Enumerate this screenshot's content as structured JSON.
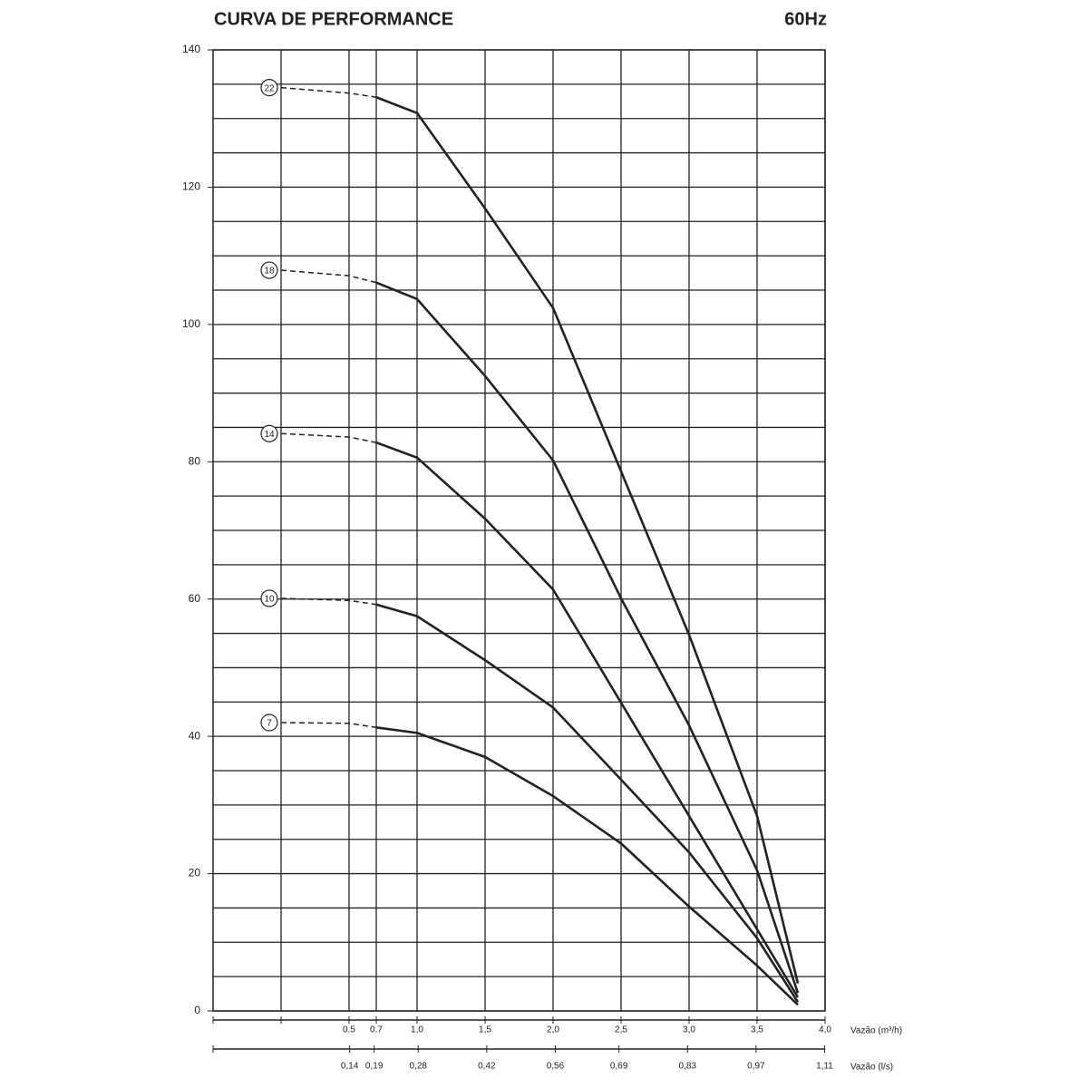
{
  "chart_data": {
    "type": "line",
    "title": "CURVA DE PERFORMANCE",
    "subtitle": "60Hz",
    "xlabel": "Vazão (m³/h)",
    "x2label": "Vazão (l/s)",
    "xlim": [
      -0.5,
      4.0
    ],
    "xticks": [
      {
        "value": 0,
        "label": null
      },
      0.5,
      0.7,
      {
        "value": 1.0,
        "label": "1,0"
      },
      {
        "value": 1.5,
        "label": "1,5"
      },
      {
        "value": 2.0,
        "label": "2,0"
      },
      {
        "value": 2.5,
        "label": "2,5"
      },
      {
        "value": 3.0,
        "label": "3,0"
      },
      {
        "value": 3.5,
        "label": "3,5"
      },
      {
        "value": 4.0,
        "label": "4,0"
      }
    ],
    "x2lim": [
      -0.139,
      1.111
    ],
    "x2ticks": [
      {
        "value": 0.14,
        "label": "0,14"
      },
      {
        "value": 0.19,
        "label": "0,19"
      },
      {
        "value": 0.28,
        "label": "0,28"
      },
      {
        "value": 0.42,
        "label": "0,42"
      },
      {
        "value": 0.56,
        "label": "0,56"
      },
      {
        "value": 0.69,
        "label": "0,69"
      },
      {
        "value": 0.83,
        "label": "0,83"
      },
      {
        "value": 0.97,
        "label": "0,97"
      },
      {
        "value": 1.11,
        "label": "1,11"
      }
    ],
    "ylim": [
      0,
      140
    ],
    "yticks": [
      0,
      20,
      40,
      60,
      80,
      100,
      120,
      140
    ],
    "minor_grid_step": 5,
    "grid": true,
    "dashed_to_x": 0.7,
    "x": [
      0,
      0.5,
      0.7,
      1.0,
      1.5,
      2.0,
      2.5,
      3.0,
      3.5,
      3.8
    ],
    "series": [
      {
        "name": "22",
        "color": "#222222",
        "values": [
          134.5,
          133.7,
          133.1,
          130.8,
          116.9,
          102.4,
          78.6,
          54.8,
          28.4,
          4.0
        ]
      },
      {
        "name": "18",
        "color": "#222222",
        "values": [
          107.9,
          107.1,
          106.1,
          103.7,
          92.5,
          80.2,
          60.1,
          41.6,
          20.5,
          2.6
        ]
      },
      {
        "name": "14",
        "color": "#222222",
        "values": [
          84.1,
          83.6,
          82.8,
          80.6,
          71.7,
          61.4,
          44.9,
          28.4,
          11.9,
          2.0
        ]
      },
      {
        "name": "10",
        "color": "#222222",
        "values": [
          60.1,
          59.8,
          59.2,
          57.5,
          51.1,
          44.2,
          33.7,
          23.1,
          10.6,
          1.3
        ]
      },
      {
        "name": "7",
        "color": "#222222",
        "values": [
          42.0,
          41.9,
          41.3,
          40.5,
          37.0,
          31.3,
          24.4,
          15.2,
          6.6,
          0.9
        ]
      }
    ]
  }
}
